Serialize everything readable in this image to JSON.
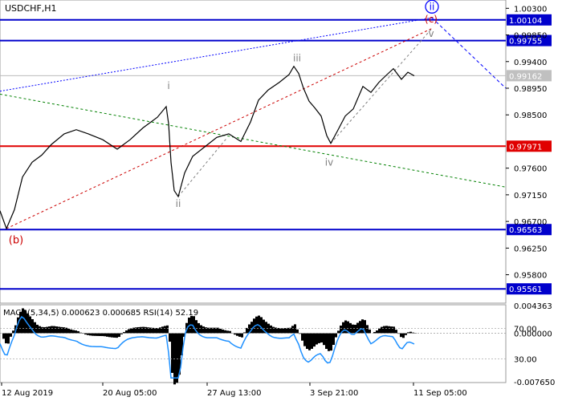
{
  "symbol_label": "USDCHF,H1",
  "indicator_label": "MACD(5,34,5) 0.000623 0.000685 RSI(14) 52.19",
  "colors": {
    "blue_level": "#0000cc",
    "red_level": "#e00000",
    "price_line": "#000000",
    "rsi": "#1e90ff",
    "wave_red": "#cc0000",
    "wave_grey": "#808080",
    "trend_blue": "#0000ff",
    "trend_green": "#008000"
  },
  "chart_data": [
    {
      "type": "line",
      "title": "USDCHF,H1",
      "ylim": [
        0.9532,
        1.0044
      ],
      "y_ticks": [
        "1.00300",
        "0.99850",
        "0.99400",
        "0.98950",
        "0.98500",
        "0.97600",
        "0.97150",
        "0.96700",
        "0.96250",
        "0.95800"
      ],
      "x_ticks": [
        "12 Aug 2019",
        "20 Aug 05:00",
        "27 Aug 13:00",
        "3 Sep 21:00",
        "11 Sep 05:00"
      ],
      "current_price": 0.99162,
      "levels": [
        {
          "value": 1.00104,
          "label": "1.00104",
          "color": "blue"
        },
        {
          "value": 0.99755,
          "label": "0.99755",
          "color": "blue"
        },
        {
          "value": 0.97971,
          "label": "0.97971",
          "color": "red"
        },
        {
          "value": 0.96563,
          "label": "0.96563",
          "color": "blue"
        },
        {
          "value": 0.95561,
          "label": "0.95561",
          "color": "blue"
        }
      ],
      "wave_labels": [
        {
          "text": "ii",
          "color": "blue",
          "circled": true
        },
        {
          "text": "(c)",
          "color": "red",
          "circled": false
        },
        {
          "text": "v",
          "color": "grey",
          "circled": false
        },
        {
          "text": "i",
          "color": "grey",
          "circled": false
        },
        {
          "text": "ii",
          "color": "grey",
          "circled": false
        },
        {
          "text": "iii",
          "color": "grey",
          "circled": false
        },
        {
          "text": "iv",
          "color": "grey",
          "circled": false
        },
        {
          "text": "(b)",
          "color": "red",
          "circled": false
        }
      ],
      "price_series": [
        [
          0,
          0.9688
        ],
        [
          8,
          0.9658
        ],
        [
          18,
          0.969
        ],
        [
          28,
          0.9745
        ],
        [
          40,
          0.977
        ],
        [
          52,
          0.9782
        ],
        [
          64,
          0.98
        ],
        [
          80,
          0.9818
        ],
        [
          95,
          0.9825
        ],
        [
          110,
          0.9818
        ],
        [
          128,
          0.9808
        ],
        [
          146,
          0.9792
        ],
        [
          162,
          0.9808
        ],
        [
          178,
          0.9828
        ],
        [
          196,
          0.9846
        ],
        [
          207,
          0.9864
        ],
        [
          210,
          0.9835
        ],
        [
          213,
          0.977
        ],
        [
          217,
          0.9722
        ],
        [
          222,
          0.9712
        ],
        [
          230,
          0.9752
        ],
        [
          240,
          0.978
        ],
        [
          255,
          0.9796
        ],
        [
          270,
          0.9812
        ],
        [
          285,
          0.9818
        ],
        [
          300,
          0.9805
        ],
        [
          312,
          0.9838
        ],
        [
          322,
          0.9875
        ],
        [
          334,
          0.9892
        ],
        [
          348,
          0.9905
        ],
        [
          360,
          0.9918
        ],
        [
          366,
          0.9932
        ],
        [
          372,
          0.992
        ],
        [
          378,
          0.9895
        ],
        [
          385,
          0.9873
        ],
        [
          392,
          0.9862
        ],
        [
          400,
          0.9848
        ],
        [
          407,
          0.9815
        ],
        [
          412,
          0.9802
        ],
        [
          420,
          0.9822
        ],
        [
          430,
          0.9848
        ],
        [
          440,
          0.986
        ],
        [
          452,
          0.9898
        ],
        [
          462,
          0.9888
        ],
        [
          472,
          0.9905
        ],
        [
          482,
          0.9918
        ],
        [
          490,
          0.9928
        ],
        [
          500,
          0.991
        ],
        [
          508,
          0.9922
        ],
        [
          516,
          0.9916
        ]
      ]
    },
    {
      "type": "bar",
      "title": "MACD(5,34,5) 0.000623 0.000685 RSI(14) 52.19",
      "macd_ylim": [
        -0.00765,
        0.004363
      ],
      "y_ticks": [
        "0.004363",
        "0.000000",
        "-0.007650"
      ],
      "rsi_levels": [
        70,
        30
      ],
      "rsi_tick_labels": [
        "70.00",
        "30.00"
      ],
      "macd_last": 0.000623,
      "signal_last": 0.000685,
      "rsi_last": 52.19
    }
  ]
}
